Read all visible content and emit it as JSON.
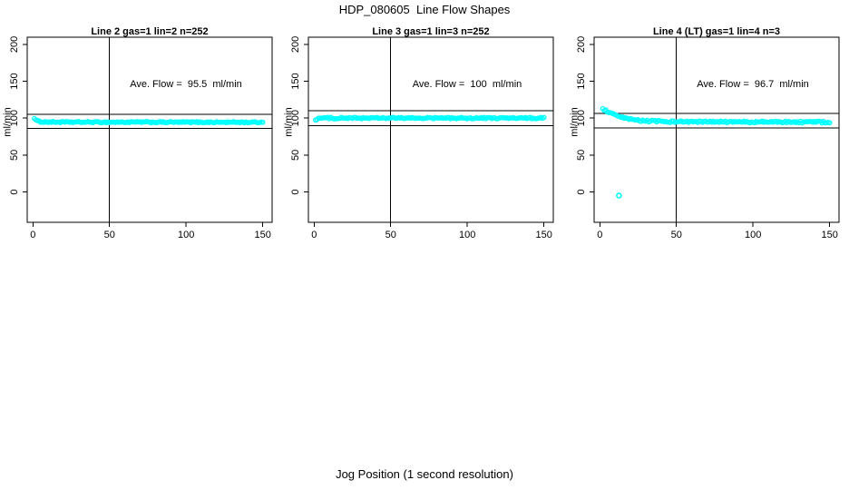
{
  "figure": {
    "main_title": "HDP_080605  Line Flow Shapes",
    "x_axis_label": "Jog Position (1 second resolution)"
  },
  "colors": {
    "background": "#ffffff",
    "points": "#00ffff",
    "axis": "#000000",
    "text": "#000000"
  },
  "chart_data": [
    {
      "type": "scatter",
      "title": "Line 2 gas=1 lin=2 n=252",
      "ylabel": "ml/min",
      "annotation": "Ave. Flow =  95.5  ml/min",
      "ave_flow_ml_min": 95.5,
      "n_points": 252,
      "x_ticks": [
        0,
        50,
        100,
        150
      ],
      "y_ticks": [
        0,
        50,
        100,
        150,
        200
      ],
      "xlim": [
        -3.7,
        156.1
      ],
      "ylim": [
        -41.2,
        209.7
      ],
      "grid": false,
      "vline_x": 50,
      "hlines": [
        105.1,
        85.9
      ],
      "points_x_range": [
        1,
        150
      ],
      "profile": [
        [
          1,
          100.2
        ],
        [
          2,
          97.2
        ],
        [
          3,
          96.0
        ],
        [
          5,
          95.2
        ],
        [
          8,
          94.8
        ],
        [
          15,
          94.6
        ],
        [
          150,
          94.4
        ]
      ],
      "jitter": 0.8,
      "outliers": []
    },
    {
      "type": "scatter",
      "title": "Line 3 gas=1 lin=3 n=252",
      "ylabel": "ml/min",
      "annotation": "Ave. Flow =  100  ml/min",
      "ave_flow_ml_min": 100,
      "n_points": 252,
      "x_ticks": [
        0,
        50,
        100,
        150
      ],
      "y_ticks": [
        0,
        50,
        100,
        150,
        200
      ],
      "xlim": [
        -3.7,
        156.1
      ],
      "ylim": [
        -41.2,
        209.7
      ],
      "grid": false,
      "vline_x": 50,
      "hlines": [
        110,
        90
      ],
      "points_x_range": [
        1,
        150
      ],
      "profile": [
        [
          1,
          97.8
        ],
        [
          2,
          99.2
        ],
        [
          3,
          99.8
        ],
        [
          5,
          100.1
        ],
        [
          150,
          100.0
        ]
      ],
      "jitter": 1.0,
      "outliers": []
    },
    {
      "type": "scatter",
      "title": "Line 4 (LT) gas=1 lin=4 n=3",
      "ylabel": "ml/min",
      "annotation": "Ave. Flow =  96.7  ml/min",
      "ave_flow_ml_min": 96.7,
      "n_points": 3,
      "x_ticks": [
        0,
        50,
        100,
        150
      ],
      "y_ticks": [
        0,
        50,
        100,
        150,
        200
      ],
      "xlim": [
        -3.7,
        156.1
      ],
      "ylim": [
        -41.2,
        209.7
      ],
      "grid": false,
      "vline_x": 50,
      "hlines": [
        106.4,
        87.0
      ],
      "points_x_range": [
        2,
        150
      ],
      "profile": [
        [
          2,
          112
        ],
        [
          3,
          111.2
        ],
        [
          5,
          108.8
        ],
        [
          8,
          105.6
        ],
        [
          12,
          102.2
        ],
        [
          17,
          99.4
        ],
        [
          23,
          97.4
        ],
        [
          30,
          96.2
        ],
        [
          45,
          95.3
        ],
        [
          70,
          94.9
        ],
        [
          150,
          94.6
        ]
      ],
      "jitter": 1.2,
      "outliers": [
        [
          12.5,
          -5
        ]
      ]
    }
  ]
}
